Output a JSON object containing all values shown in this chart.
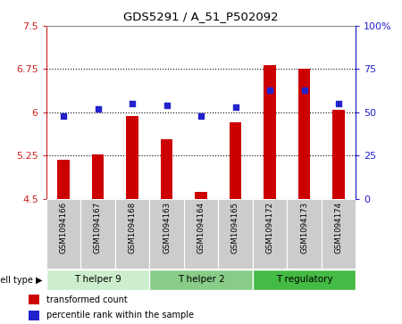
{
  "title": "GDS5291 / A_51_P502092",
  "samples": [
    "GSM1094166",
    "GSM1094167",
    "GSM1094168",
    "GSM1094163",
    "GSM1094164",
    "GSM1094165",
    "GSM1094172",
    "GSM1094173",
    "GSM1094174"
  ],
  "transformed_counts": [
    5.17,
    5.27,
    5.94,
    5.53,
    4.62,
    5.83,
    6.82,
    6.76,
    6.04
  ],
  "percentile_ranks": [
    48,
    52,
    55,
    54,
    48,
    53,
    63,
    63,
    55
  ],
  "ylim_left": [
    4.5,
    7.5
  ],
  "ylim_right": [
    0,
    100
  ],
  "yticks_left": [
    4.5,
    5.25,
    6.0,
    6.75,
    7.5
  ],
  "yticks_right": [
    0,
    25,
    50,
    75,
    100
  ],
  "ytick_labels_left": [
    "4.5",
    "5.25",
    "6",
    "6.75",
    "7.5"
  ],
  "ytick_labels_right": [
    "0",
    "25",
    "50",
    "75",
    "100%"
  ],
  "hlines": [
    5.25,
    6.0,
    6.75
  ],
  "bar_color": "#cc0000",
  "dot_color": "#2222cc",
  "bar_bottom": 4.5,
  "bar_width": 0.35,
  "cell_type_groups": [
    {
      "label": "T helper 9",
      "start": 0,
      "end": 2,
      "color": "#cceecc"
    },
    {
      "label": "T helper 2",
      "start": 3,
      "end": 5,
      "color": "#88cc88"
    },
    {
      "label": "T regulatory",
      "start": 6,
      "end": 8,
      "color": "#44bb44"
    }
  ],
  "legend_items": [
    {
      "label": "transformed count",
      "color": "#cc0000"
    },
    {
      "label": "percentile rank within the sample",
      "color": "#2222cc"
    }
  ],
  "cell_type_label": "cell type",
  "left_axis_color": "#cc2222",
  "right_axis_color": "#2222cc",
  "tick_label_area_color": "#cccccc",
  "spine_color": "#888888",
  "dot_size": 14
}
